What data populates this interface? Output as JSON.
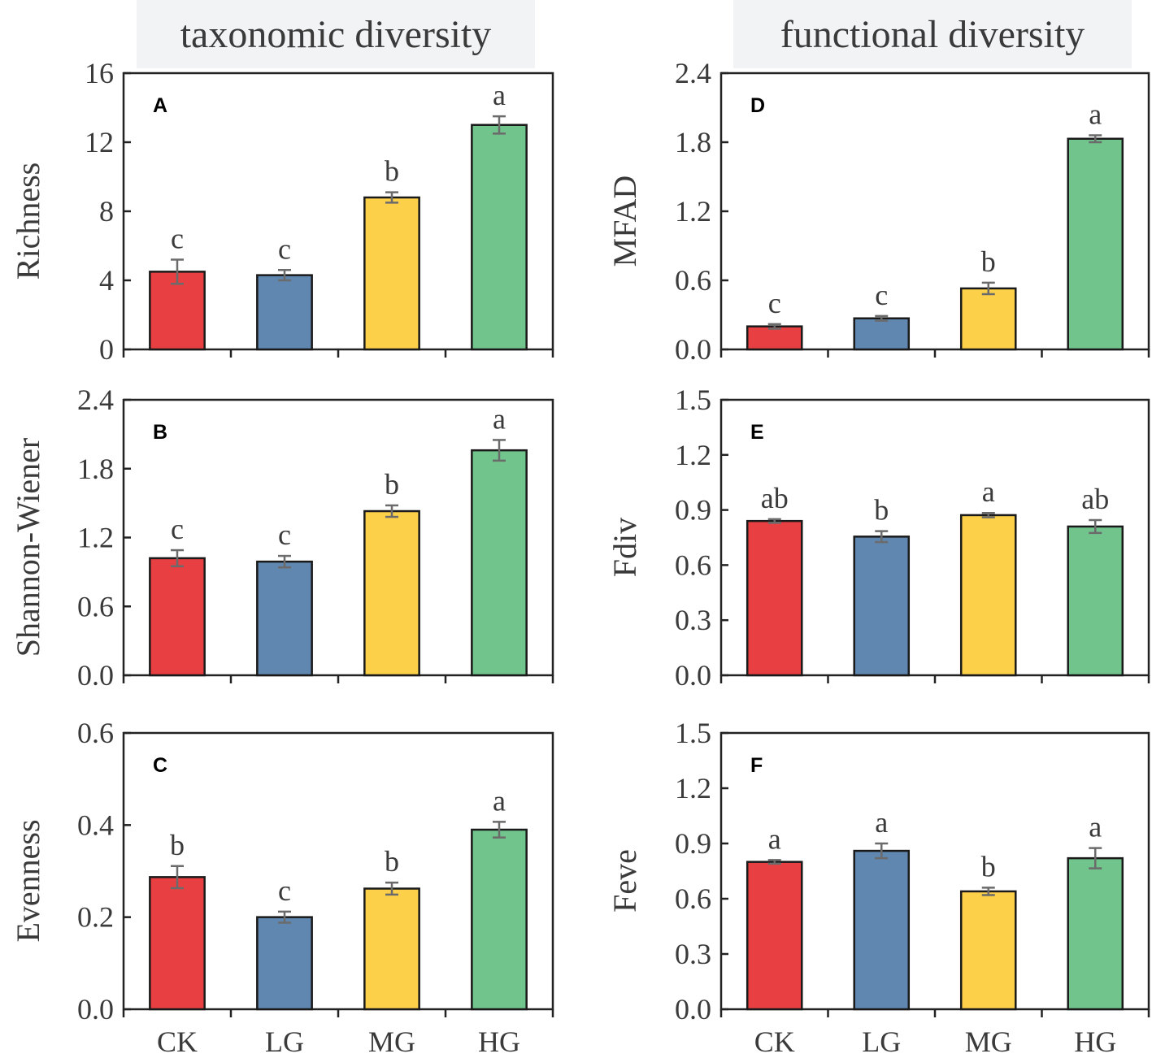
{
  "headers": {
    "left": "taxonomic diversity",
    "right": "functional diversity"
  },
  "colors": {
    "CK": "#e84042",
    "LG": "#5f87b0",
    "MG": "#fdd04a",
    "HG": "#70c48c",
    "error_bar": "#6b6b6b",
    "axis": "#222222"
  },
  "chart_data": [
    {
      "type": "bar",
      "panel": "A",
      "ylabel": "Richness",
      "categories": [
        "CK",
        "LG",
        "MG",
        "HG"
      ],
      "values": [
        4.5,
        4.3,
        8.8,
        13.0
      ],
      "errors": [
        0.7,
        0.3,
        0.3,
        0.5
      ],
      "significance": [
        "c",
        "c",
        "b",
        "a"
      ],
      "ylim": [
        0,
        16
      ],
      "yticks": [
        "0",
        "4",
        "8",
        "12",
        "16"
      ]
    },
    {
      "type": "bar",
      "panel": "B",
      "ylabel": "Shannon-Wiener",
      "categories": [
        "CK",
        "LG",
        "MG",
        "HG"
      ],
      "values": [
        1.02,
        0.99,
        1.43,
        1.96
      ],
      "errors": [
        0.07,
        0.05,
        0.05,
        0.09
      ],
      "significance": [
        "c",
        "c",
        "b",
        "a"
      ],
      "ylim": [
        0,
        2.4
      ],
      "yticks": [
        "0.0",
        "0.6",
        "1.2",
        "1.8",
        "2.4"
      ]
    },
    {
      "type": "bar",
      "panel": "C",
      "ylabel": "Evenness",
      "categories": [
        "CK",
        "LG",
        "MG",
        "HG"
      ],
      "values": [
        0.287,
        0.2,
        0.262,
        0.39
      ],
      "errors": [
        0.024,
        0.012,
        0.013,
        0.017
      ],
      "significance": [
        "b",
        "c",
        "b",
        "a"
      ],
      "ylim": [
        0,
        0.6
      ],
      "yticks": [
        "0.0",
        "0.2",
        "0.4",
        "0.6"
      ],
      "xticks": [
        "CK",
        "LG",
        "MG",
        "HG"
      ]
    },
    {
      "type": "bar",
      "panel": "D",
      "ylabel": "MFAD",
      "categories": [
        "CK",
        "LG",
        "MG",
        "HG"
      ],
      "values": [
        0.2,
        0.27,
        0.53,
        1.83
      ],
      "errors": [
        0.02,
        0.02,
        0.05,
        0.03
      ],
      "significance": [
        "c",
        "c",
        "b",
        "a"
      ],
      "ylim": [
        0,
        2.4
      ],
      "yticks": [
        "0.0",
        "0.6",
        "1.2",
        "1.8",
        "2.4"
      ]
    },
    {
      "type": "bar",
      "panel": "E",
      "ylabel": "Fdiv",
      "categories": [
        "CK",
        "LG",
        "MG",
        "HG"
      ],
      "values": [
        0.84,
        0.755,
        0.872,
        0.81
      ],
      "errors": [
        0.01,
        0.03,
        0.012,
        0.035
      ],
      "significance": [
        "ab",
        "b",
        "a",
        "ab"
      ],
      "ylim": [
        0,
        1.5
      ],
      "yticks": [
        "0.0",
        "0.3",
        "0.6",
        "0.9",
        "1.2",
        "1.5"
      ]
    },
    {
      "type": "bar",
      "panel": "F",
      "ylabel": "Feve",
      "categories": [
        "CK",
        "LG",
        "MG",
        "HG"
      ],
      "values": [
        0.8,
        0.86,
        0.64,
        0.82
      ],
      "errors": [
        0.01,
        0.04,
        0.02,
        0.055
      ],
      "significance": [
        "a",
        "a",
        "b",
        "a"
      ],
      "ylim": [
        0,
        1.5
      ],
      "yticks": [
        "0.0",
        "0.3",
        "0.6",
        "0.9",
        "1.2",
        "1.5"
      ],
      "xticks": [
        "CK",
        "LG",
        "MG",
        "HG"
      ]
    }
  ]
}
